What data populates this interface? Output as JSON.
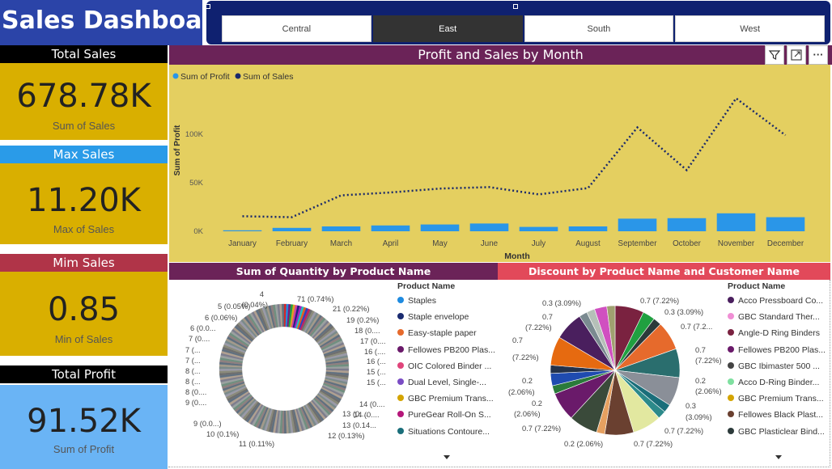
{
  "title": "Sales Dashboard",
  "slicer": {
    "regions": [
      "Central",
      "East",
      "South",
      "West"
    ],
    "selected": "East"
  },
  "kpis": [
    {
      "header": "Total Sales",
      "value": "678.78K",
      "label": "Sum of Sales"
    },
    {
      "header": "Max Sales",
      "value": "11.20K",
      "label": "Max of Sales"
    },
    {
      "header": "Mim Sales",
      "value": "0.85",
      "label": "Min of Sales"
    },
    {
      "header": "Total Profit",
      "value": "91.52K",
      "label": "Sum of Profit"
    }
  ],
  "colors": {
    "kpi_yellow": "#d9af00",
    "kpi_blue_body": "#6ab4f5",
    "header_blue": "#2a9be8",
    "header_red": "#b03448",
    "header_black": "#000000",
    "panel_yellow": "#e4cf60",
    "bar_blue": "#2a96e8",
    "line_navy": "#1b2a6b",
    "title_purple": "#6b2358",
    "title_red": "#e2495a"
  },
  "toolbar": {
    "filter_icon": "filter-icon",
    "focus_icon": "focus-mode-icon",
    "more_icon": "more-options-icon"
  },
  "chart_data": [
    {
      "type": "bar",
      "title": "Profit and Sales by Month",
      "xlabel": "Month",
      "ylabel": "Sum of Profit",
      "ylim": [
        0,
        150000
      ],
      "yticks": [
        "0K",
        "50K",
        "100K"
      ],
      "grid": false,
      "legend_position": "top-left",
      "categories": [
        "January",
        "February",
        "March",
        "April",
        "May",
        "June",
        "July",
        "August",
        "September",
        "October",
        "November",
        "December"
      ],
      "series": [
        {
          "name": "Sum of Profit",
          "kind": "bar",
          "values": [
            1000,
            3500,
            5000,
            6000,
            7000,
            8000,
            4500,
            5000,
            13000,
            13500,
            18500,
            14500
          ]
        },
        {
          "name": "Sum of Sales",
          "kind": "line",
          "values": [
            15500,
            14500,
            37000,
            40000,
            44000,
            45500,
            38000,
            44500,
            107000,
            63000,
            137000,
            99000
          ]
        }
      ]
    },
    {
      "type": "pie",
      "title": "Sum of Quantity by Product Name",
      "legend_title": "Product Name",
      "legend": [
        "Staples",
        "Staple envelope",
        "Easy-staple paper",
        "Fellowes PB200 Plas...",
        "OIC Colored Binder ...",
        "Dual Level, Single-...",
        "GBC Premium Trans...",
        "PureGear Roll-On S...",
        "Situations Contoure..."
      ],
      "legend_colors": [
        "#1f8be0",
        "#1a2b70",
        "#e66a2c",
        "#6a1a6a",
        "#e0457b",
        "#7a4cc4",
        "#d4a400",
        "#b5177a",
        "#1a6e7a"
      ],
      "data_labels": [
        "4",
        "(0.04%)",
        "71 (0.74%)",
        "5 (0.05%)",
        "21 (0.22%)",
        "6 (0.06%)",
        "19 (0.2%)",
        "6 (0.0...",
        "18 (0....",
        "7 (0....",
        "17 (0....",
        "7 (...",
        "16 (....",
        "7 (...",
        "16 (...",
        "8 (...",
        "15 (...",
        "8 (...",
        "15 (...",
        "8 (0....",
        "14 (0....",
        "9 (0....",
        "14 (0....",
        "9 (0.0...)",
        "13 (0....",
        "10 (0.1%)",
        "13 (0.14...",
        "11 (0.11%)",
        "12 (0.13%)"
      ]
    },
    {
      "type": "pie",
      "title": "Discount by Product Name and Customer Name",
      "legend_title": "Product Name",
      "legend": [
        "Acco Pressboard Co...",
        "GBC Standard Ther...",
        "Angle-D Ring Binders",
        "Fellowes PB200 Plas...",
        "GBC Ibimaster 500 ...",
        "Acco D-Ring Binder...",
        "GBC Premium Trans...",
        "Fellowes Black Plast...",
        "GBC Plasticlear Bind..."
      ],
      "legend_colors": [
        "#4a1f5e",
        "#f08fd5",
        "#7a2240",
        "#6a1a6a",
        "#444444",
        "#7fe0a0",
        "#d4a400",
        "#6a4030",
        "#2c3a3a"
      ],
      "data_labels": [
        "0.3 (3.09%)",
        "0.7 (7.22%)",
        "0.7",
        "0.3 (3.09%)",
        "(7.22%)",
        "0.7 (7.2...",
        "0.7",
        "0.7",
        "(7.22%)",
        "(7.22%)",
        "0.2",
        "0.2",
        "(2.06%)",
        "(2.06%)",
        "0.2",
        "0.3",
        "(2.06%)",
        "(3.09%)",
        "0.7 (7.22%)",
        "0.7 (7.22%)",
        "0.2 (2.06%)",
        "0.7 (7.22%)"
      ]
    }
  ]
}
